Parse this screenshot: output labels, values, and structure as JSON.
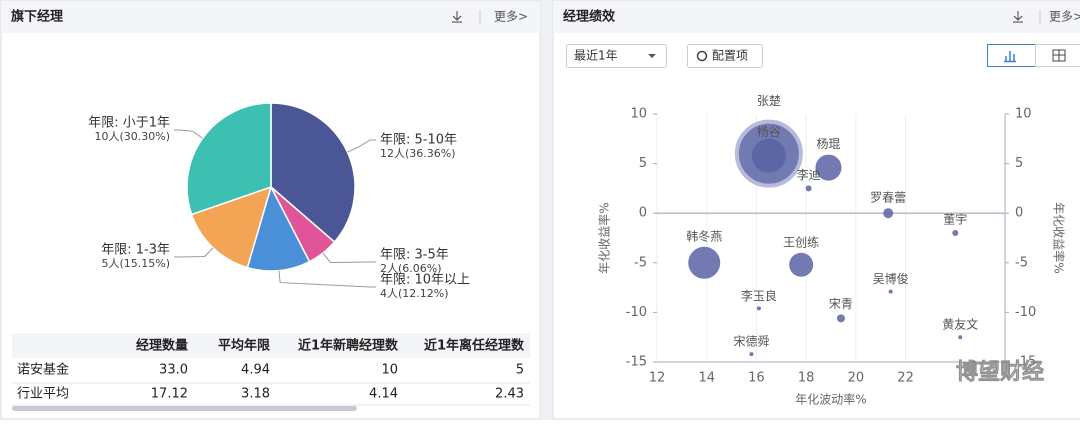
{
  "left_panel": {
    "title": "旗下经理",
    "more": "更多>"
  },
  "right_panel": {
    "title": "经理绩效",
    "more": "更多>",
    "period": "最近1年",
    "config": "配置项"
  },
  "watermark": "博望财经",
  "chart_data": [
    {
      "type": "pie",
      "categories": [
        "年限: 5-10年",
        "年限: 3-5年",
        "年限: 10年以上",
        "年限: 1-3年",
        "年限: 小于1年"
      ],
      "values": [
        36.36,
        6.06,
        12.12,
        15.15,
        30.3
      ],
      "value_labels": [
        "12人(36.36%)",
        "2人(6.06%)",
        "4人(12.12%)",
        "5人(15.15%)",
        "10人(30.30%)"
      ],
      "colors": [
        "#4b5697",
        "#e0559a",
        "#4a90d9",
        "#f4a455",
        "#3dbfb1"
      ]
    },
    {
      "type": "scatter",
      "xlabel": "年化波动率%",
      "ylabel": "年化收益率%",
      "y2label": "年化收益率%",
      "xlim": [
        12,
        26
      ],
      "xticks": [
        12,
        14,
        16,
        18,
        20,
        22
      ],
      "ylim": [
        -15,
        10
      ],
      "yticks": [
        -15,
        -10,
        -5,
        0,
        5,
        10
      ],
      "y2lim": [
        -15,
        10
      ],
      "y2ticks": [
        -15,
        -10,
        -5,
        0,
        5,
        10
      ],
      "grid": true,
      "color": "#5863a3",
      "labels": [
        "张楚",
        "杨谷",
        "杨琨",
        "李迪",
        "罗春蕾",
        "董宇",
        "韩冬燕",
        "王创练",
        "吴博俊",
        "李玉良",
        "宋青",
        "黄友文",
        "宋德舜"
      ],
      "x": [
        16.5,
        16.5,
        18.9,
        18.1,
        21.3,
        24.0,
        13.9,
        17.8,
        21.4,
        16.1,
        19.4,
        24.2,
        15.8
      ],
      "values": [
        6.0,
        5.8,
        4.6,
        2.5,
        0,
        -2.0,
        -5.0,
        -5.2,
        -7.9,
        -9.6,
        -10.6,
        -12.5,
        -14.2
      ],
      "sizes": [
        32,
        17,
        13,
        3,
        5,
        3,
        16,
        12,
        2,
        2,
        4,
        2,
        2
      ]
    }
  ],
  "table": {
    "columns": [
      "经理数量",
      "平均年限",
      "近1年新聘经理数",
      "近1年离任经理数"
    ],
    "rows": [
      [
        "诺安基金",
        "33.0",
        "4.94",
        "10",
        "5"
      ],
      [
        "行业平均",
        "17.12",
        "3.18",
        "4.14",
        "2.43"
      ]
    ]
  }
}
